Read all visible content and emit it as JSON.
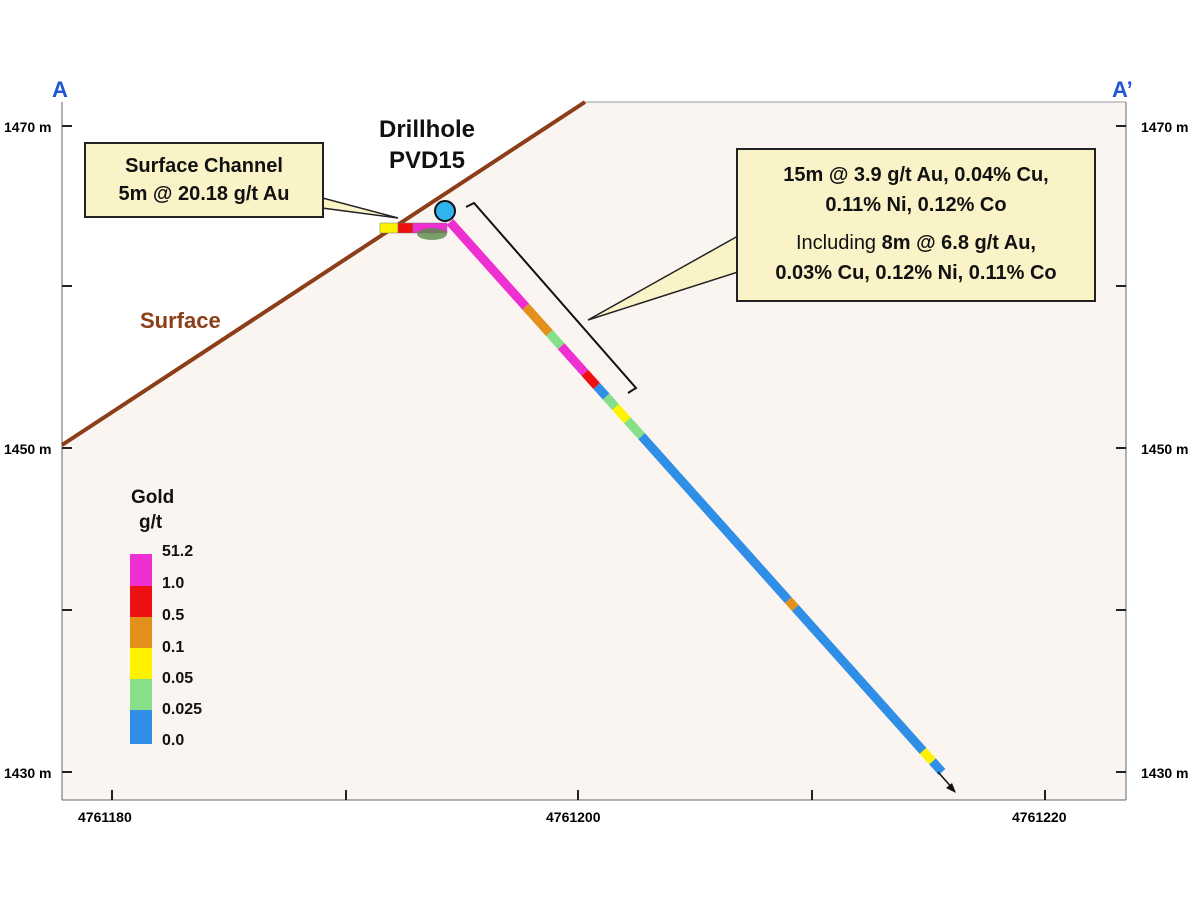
{
  "section": {
    "label_left": "A",
    "label_right": "A’",
    "drillhole_line1": "Drillhole",
    "drillhole_line2": "PVD15",
    "surface_label": "Surface"
  },
  "elevation_ticks": [
    "1470 m",
    "1450 m",
    "1430 m"
  ],
  "easting_ticks": [
    "4761180",
    "4761200",
    "4761220"
  ],
  "channel_callout": {
    "line1": "Surface Channel",
    "line2": "5m @ 20.18 g/t Au"
  },
  "intercept_callout": {
    "line1": "15m @ 3.9 g/t Au, 0.04% Cu,",
    "line2": "0.11% Ni, 0.12% Co",
    "line3_prefix": "Including",
    "line3_value": "8m @ 6.8 g/t Au,",
    "line4": "0.03% Cu, 0.12% Ni, 0.11% Co"
  },
  "legend": {
    "title1": "Gold",
    "title2": "g/t",
    "labels": [
      "51.2",
      "1.0",
      "0.5",
      "0.1",
      "0.05",
      "0.025",
      "0.0"
    ],
    "colors": [
      "#ee2fd2",
      "#ee1111",
      "#e3901c",
      "#fff200",
      "#86e089",
      "#2f8ee6"
    ]
  }
}
